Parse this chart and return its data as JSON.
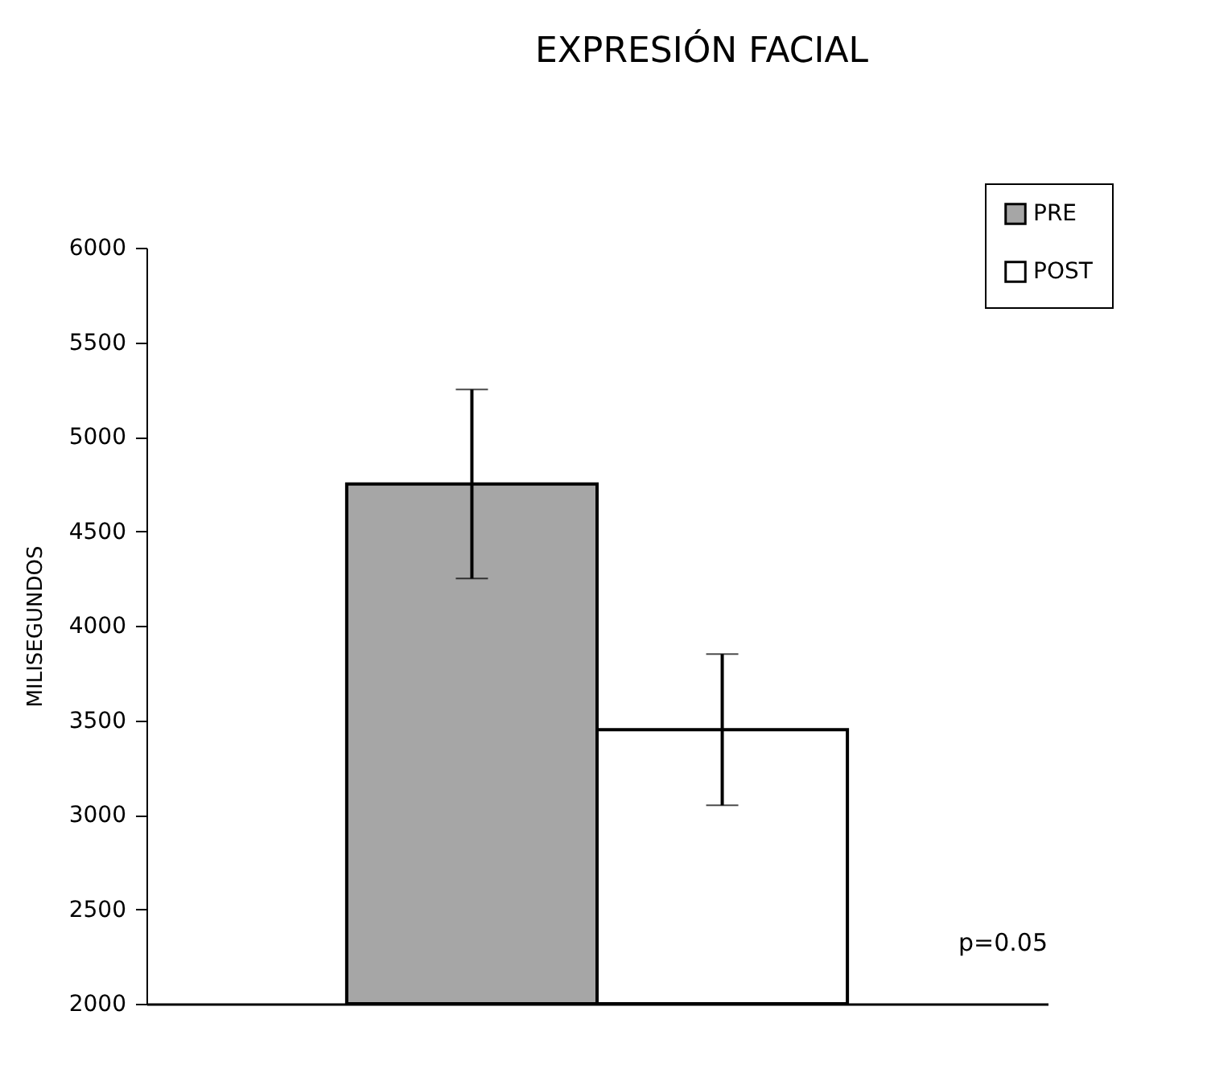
{
  "chart_data": {
    "type": "bar",
    "title": "EXPRESIÓN FACIAL",
    "ylabel": "MILISEGUNDOS",
    "categories": [
      null
    ],
    "series": [
      {
        "name": "PRE",
        "color": "#a6a6a6",
        "values": [
          4750
        ],
        "errors": [
          500
        ]
      },
      {
        "name": "POST",
        "color": "#ffffff",
        "values": [
          3450
        ],
        "errors": [
          400
        ]
      }
    ],
    "ylim": [
      2000,
      6000
    ],
    "yticks": [
      2000,
      2500,
      3000,
      3500,
      4000,
      4500,
      5000,
      5500,
      6000
    ],
    "grid": false,
    "legend": "top right",
    "annotations": [
      "p=0.05"
    ]
  }
}
